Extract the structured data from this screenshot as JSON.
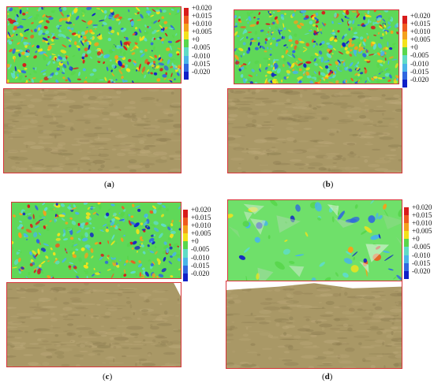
{
  "colorbar": {
    "labels": [
      "+0.020",
      "+0.015",
      "+0.010",
      "+0.005",
      "+0",
      "-0.005",
      "-0.010",
      "-0.015",
      "-0.020"
    ],
    "colors": [
      "#d81b1b",
      "#ef5a1f",
      "#f4a11c",
      "#f3e21b",
      "#58d64c",
      "#5fdcc6",
      "#49b5e8",
      "#2f67e0",
      "#1020c8"
    ]
  },
  "panels": [
    {
      "id": "a",
      "caption_open": "(",
      "caption_letter": "a",
      "caption_close": ")"
    },
    {
      "id": "b",
      "caption_open": "(",
      "caption_letter": "b",
      "caption_close": ")"
    },
    {
      "id": "c",
      "caption_open": "(",
      "caption_letter": "c",
      "caption_close": ")"
    },
    {
      "id": "d",
      "caption_open": "(",
      "caption_letter": "d",
      "caption_close": ")"
    }
  ]
}
